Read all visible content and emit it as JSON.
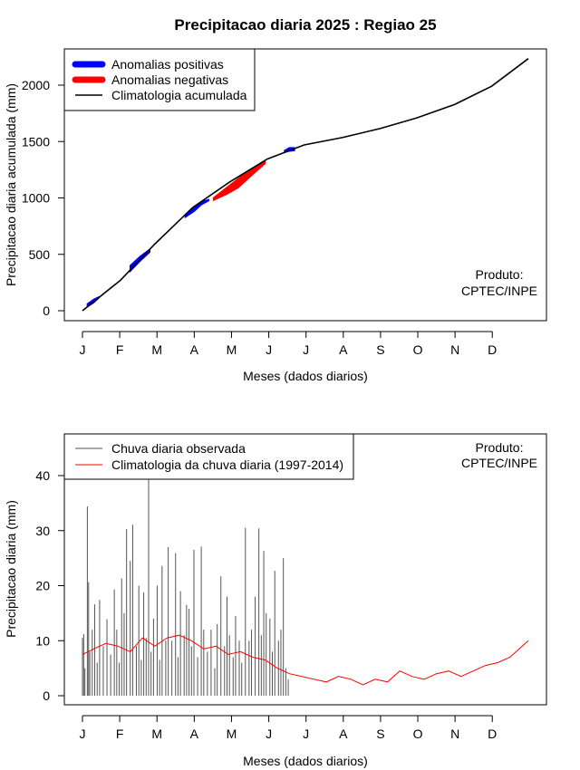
{
  "title": "Precipitacao diaria 2025 : Regiao 25",
  "chart_data": [
    {
      "type": "line",
      "ylabel": "Precipitacao diaria acumulada (mm)",
      "xlabel": "Meses (dados diarios)",
      "x_ticks": [
        "J",
        "F",
        "M",
        "A",
        "M",
        "J",
        "J",
        "A",
        "S",
        "O",
        "N",
        "D"
      ],
      "y_ticks": [
        0,
        500,
        1000,
        1500,
        2000
      ],
      "xlim": [
        1,
        365
      ],
      "ylim": [
        0,
        2250
      ],
      "legend_position": "top-left",
      "legend": [
        {
          "label": "Anomalias positivas",
          "color": "#0000ff",
          "style": "thick"
        },
        {
          "label": "Anomalias negativas",
          "color": "#ff0000",
          "style": "thick"
        },
        {
          "label": "Climatologia acumulada",
          "color": "#000000",
          "style": "line"
        }
      ],
      "annotation": [
        "Produto:",
        "CPTEC/INPE"
      ],
      "series": [
        {
          "name": "Climatologia acumulada",
          "color": "#000000",
          "x": [
            1,
            32,
            60,
            91,
            121,
            152,
            182,
            213,
            244,
            274,
            305,
            335,
            365
          ],
          "y": [
            0,
            270,
            590,
            915,
            1140,
            1345,
            1470,
            1535,
            1615,
            1710,
            1830,
            1990,
            2235
          ]
        },
        {
          "name": "Anomalias positivas",
          "color": "#0000ff",
          "segments": [
            {
              "x": [
                5,
                10,
                14
              ],
              "upper": [
                60,
                100,
                120
              ],
              "lower": [
                35,
                70,
                110
              ]
            },
            {
              "x": [
                40,
                48,
                56
              ],
              "upper": [
                400,
                480,
                545
              ],
              "lower": [
                350,
                440,
                520
              ]
            },
            {
              "x": [
                85,
                92,
                98,
                104
              ],
              "upper": [
                850,
                920,
                965,
                985
              ],
              "lower": [
                830,
                880,
                940,
                975
              ]
            },
            {
              "x": [
                166,
                170,
                174
              ],
              "upper": [
                1420,
                1445,
                1445
              ],
              "lower": [
                1405,
                1415,
                1420
              ]
            }
          ]
        },
        {
          "name": "Anomalias negativas",
          "color": "#ff0000",
          "segments": [
            {
              "x": [
                108,
                118,
                128,
                140,
                150
              ],
              "upper": [
                1000,
                1085,
                1170,
                1260,
                1320
              ],
              "lower": [
                980,
                1030,
                1090,
                1210,
                1305
              ]
            }
          ]
        }
      ]
    },
    {
      "type": "bar",
      "ylabel": "Precipitacao diaria (mm)",
      "xlabel": "Meses (dados diarios)",
      "x_ticks": [
        "J",
        "F",
        "M",
        "A",
        "M",
        "J",
        "J",
        "A",
        "S",
        "O",
        "N",
        "D"
      ],
      "y_ticks": [
        0,
        10,
        20,
        30,
        40
      ],
      "xlim": [
        1,
        365
      ],
      "ylim": [
        -1.5,
        47.5
      ],
      "legend_position": "top-left",
      "legend": [
        {
          "label": "Chuva diaria observada",
          "color": "#555555"
        },
        {
          "label": "Climatologia da chuva diaria (1997-2014)",
          "color": "#ff0000"
        }
      ],
      "annotation": [
        "Produto:",
        "CPTEC/INPE"
      ],
      "series": [
        {
          "name": "Chuva diaria observada",
          "color": "#555555",
          "kind": "bars",
          "x": [
            1,
            2,
            3,
            5,
            6,
            7,
            9,
            11,
            13,
            15,
            18,
            21,
            24,
            27,
            29,
            31,
            33,
            35,
            37,
            40,
            42,
            45,
            47,
            49,
            51,
            53,
            55,
            57,
            59,
            62,
            64,
            66,
            69,
            71,
            74,
            77,
            79,
            81,
            84,
            86,
            88,
            90,
            92,
            95,
            98,
            100,
            103,
            106,
            109,
            111,
            114,
            117,
            119,
            121,
            124,
            126,
            129,
            131,
            134,
            137,
            139,
            142,
            145,
            147,
            149,
            151,
            154,
            156,
            158,
            161,
            163,
            165,
            167,
            169
          ],
          "y": [
            10.5,
            11.2,
            5.0,
            34.4,
            20.6,
            8.0,
            12.0,
            16.6,
            6.0,
            17.4,
            9.0,
            13.9,
            7.5,
            19.3,
            12.0,
            6.0,
            21.3,
            15.0,
            30.3,
            24.5,
            31.1,
            9.0,
            20.0,
            6.5,
            18.8,
            10.5,
            47.0,
            8.0,
            14.0,
            20.0,
            6.5,
            23.6,
            10.0,
            27.0,
            10.0,
            25.9,
            7.0,
            19.0,
            11.0,
            16.5,
            15.8,
            9.0,
            26.5,
            7.0,
            27.1,
            12.0,
            8.0,
            12.0,
            5.0,
            13.0,
            21.7,
            9.0,
            18.0,
            11.0,
            7.0,
            14.5,
            10.0,
            6.0,
            30.5,
            10.0,
            12.0,
            18.0,
            30.4,
            11.0,
            26.3,
            15.0,
            14.0,
            8.0,
            22.7,
            10.0,
            12.0,
            25.0,
            5.0,
            3.0
          ]
        },
        {
          "name": "Climatologia da chuva diaria (1997-2014)",
          "color": "#ff0000",
          "kind": "line",
          "x": [
            1,
            10,
            20,
            30,
            40,
            50,
            60,
            70,
            80,
            90,
            100,
            110,
            120,
            130,
            140,
            150,
            160,
            170,
            180,
            190,
            200,
            210,
            220,
            230,
            240,
            250,
            260,
            270,
            280,
            290,
            300,
            310,
            320,
            330,
            340,
            350,
            360,
            365
          ],
          "y": [
            7.5,
            8.5,
            9.5,
            9.0,
            8.0,
            10.5,
            9.0,
            10.5,
            11.0,
            10.0,
            8.5,
            9.0,
            7.5,
            8.0,
            7.0,
            6.5,
            5.0,
            4.0,
            3.5,
            3.0,
            2.5,
            3.5,
            3.0,
            2.0,
            3.0,
            2.5,
            4.5,
            3.5,
            3.0,
            4.0,
            4.5,
            3.5,
            4.5,
            5.5,
            6.0,
            7.0,
            9.0,
            10.0
          ]
        }
      ]
    }
  ]
}
